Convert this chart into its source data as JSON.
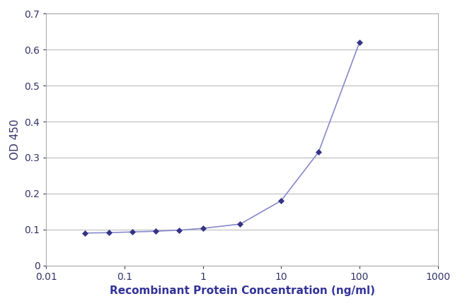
{
  "x": [
    0.031,
    0.063,
    0.125,
    0.25,
    0.5,
    1.0,
    3.0,
    10.0,
    30.0,
    100.0
  ],
  "y": [
    0.09,
    0.091,
    0.093,
    0.095,
    0.098,
    0.103,
    0.115,
    0.18,
    0.315,
    0.62
  ],
  "line_color": "#8888cc",
  "marker_color": "#333388",
  "marker_size": 4,
  "line_width": 1.2,
  "xlabel": "Recombinant Protein Concentration (ng/ml)",
  "ylabel": "OD 450",
  "xlim": [
    0.01,
    1000
  ],
  "ylim": [
    0,
    0.7
  ],
  "yticks": [
    0,
    0.1,
    0.2,
    0.3,
    0.4,
    0.5,
    0.6,
    0.7
  ],
  "ytick_labels": [
    "0",
    "0.1",
    "0.2",
    "0.3",
    "0.4",
    "0.5",
    "0.6",
    "0.7"
  ],
  "xticks": [
    0.01,
    0.1,
    1,
    10,
    100,
    1000
  ],
  "xtick_labels": [
    "0.01",
    "0.1",
    "1",
    "10",
    "100",
    "1000"
  ],
  "grid_color": "#bbbbbb",
  "background_color": "#ffffff",
  "plot_bg_color": "#ffffff",
  "xlabel_fontsize": 11,
  "ylabel_fontsize": 11,
  "tick_fontsize": 10,
  "spine_color": "#aaaaaa",
  "label_color": "#333399",
  "tick_label_color": "#333366"
}
